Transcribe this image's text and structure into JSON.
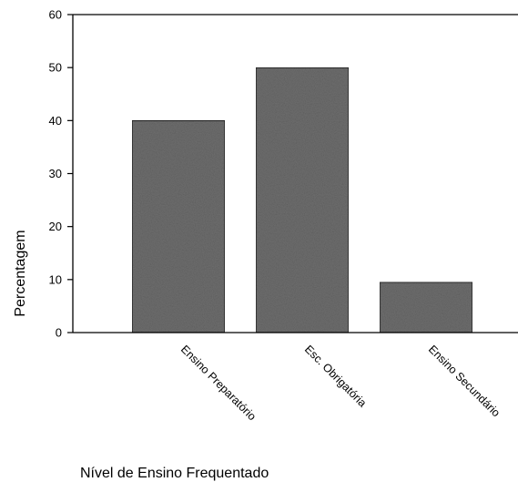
{
  "chart_data": {
    "type": "bar",
    "categories": [
      "Ensino Preparatório",
      "Esc. Obrigatória",
      "Ensino Secundário"
    ],
    "values": [
      40,
      50,
      9.5
    ],
    "xlabel": "Nível de Ensino Frequentado",
    "ylabel": "Percentagem",
    "ylim": [
      0,
      60
    ],
    "yticks": [
      0,
      10,
      20,
      30,
      40,
      50,
      60
    ],
    "grid": false,
    "bar_color": "#6e6e6e"
  }
}
